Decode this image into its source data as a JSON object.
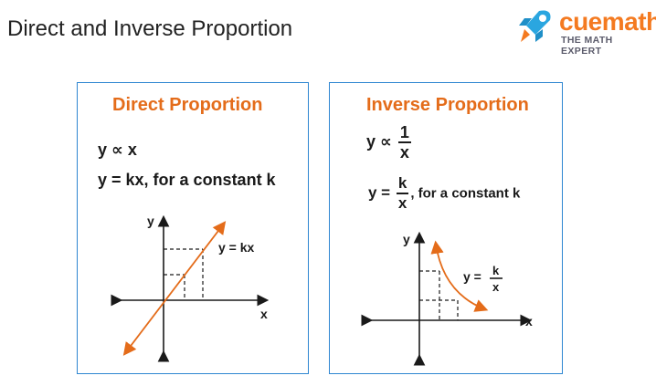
{
  "header": {
    "title": "Direct and Inverse Proportion"
  },
  "brand": {
    "name": "cuemath",
    "tagline": "THE MATH EXPERT",
    "icon": "rocket-icon",
    "accent": "#f47a20",
    "icon_color": "#2aa6e0"
  },
  "colors": {
    "panel_border": "#2e86d1",
    "panel_title": "#e46c1a",
    "curve": "#e46c1a",
    "axis": "#1a1a1a"
  },
  "direct": {
    "title": "Direct Proportion",
    "eq1": {
      "lhs": "y",
      "symbol": "∝",
      "rhs": "x"
    },
    "eq2": "y = kx, for a constant k",
    "graph": {
      "y_label": "y",
      "x_label": "x",
      "line_label": "y = kx"
    }
  },
  "inverse": {
    "title": "Inverse Proportion",
    "eq1": {
      "lhs": "y",
      "symbol": "∝",
      "num": "1",
      "den": "x"
    },
    "eq2": {
      "lhs": "y =",
      "num": "k",
      "den": "x",
      "rest": ", for a constant k"
    },
    "graph": {
      "y_label": "y",
      "x_label": "x",
      "curve_label_lhs": "y =",
      "curve_label_num": "k",
      "curve_label_den": "x"
    }
  }
}
